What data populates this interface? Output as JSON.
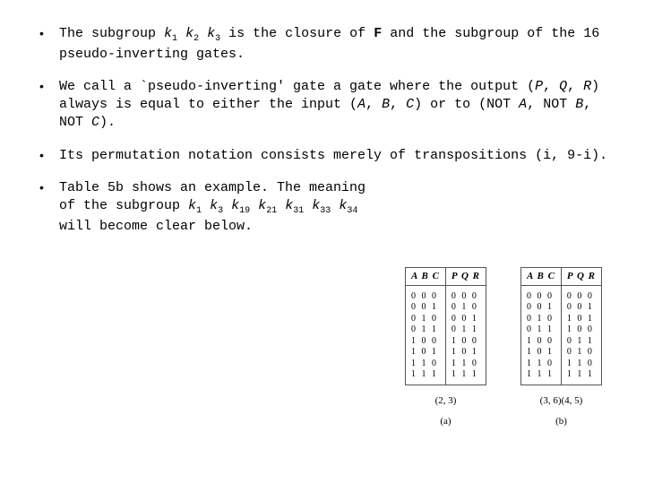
{
  "bullets": {
    "b1a": "The subgroup ",
    "b1k1": "k",
    "b1s1": "1",
    "b1k2": "k",
    "b1s2": "2",
    "b1k3": "k",
    "b1s3": "3",
    "b1b": " is the closure of ",
    "b1F": "F",
    "b1c": " and the subgroup of the 16 pseudo-inverting gates.",
    "b2a": "We call a `pseudo-inverting' gate a gate where the output (",
    "b2P": "P",
    "b2c1": ", ",
    "b2Q": "Q",
    "b2c2": ", ",
    "b2R": "R",
    "b2b": ") always is equal to either the input (",
    "b2A": "A",
    "b2c3": ", ",
    "b2B": "B",
    "b2c4": ", ",
    "b2C": "C",
    "b2c5": ") or to (NOT ",
    "b2A2": "A",
    "b2c6": ", NOT ",
    "b2B2": "B",
    "b2c7": ", NOT ",
    "b2C2": "C",
    "b2c8": ").",
    "b3": "Its permutation notation consists merely of transpositions (i, 9-i).",
    "b4a": "Table 5b shows an example. The meaning of the subgroup ",
    "b4k1": "k",
    "b4s1": "1",
    "b4k3": "k",
    "b4s3": "3",
    "b4k19": "k",
    "b4s19": "19",
    "b4k21": "k",
    "b4s21": "21",
    "b4k31": "k",
    "b4s31": "31",
    "b4k33": "k",
    "b4s33": "33",
    "b4k34": "k",
    "b4s34": "34",
    "b4b": " will become clear below."
  },
  "tables": {
    "hdrABC": "A B C",
    "hdrPQR": "P Q R",
    "a": {
      "left": "0 0 0\n0 0 1\n0 1 0\n0 1 1\n1 0 0\n1 0 1\n1 1 0\n1 1 1",
      "right": "0 0 0\n0 1 0\n0 0 1\n0 1 1\n1 0 0\n1 0 1\n1 1 0\n1 1 1",
      "caption": "(2, 3)",
      "label": "(a)"
    },
    "b": {
      "left": "0 0 0\n0 0 1\n0 1 0\n0 1 1\n1 0 0\n1 0 1\n1 1 0\n1 1 1",
      "right": "0 0 0\n0 0 1\n1 0 1\n1 0 0\n0 1 1\n0 1 0\n1 1 0\n1 1 1",
      "caption": "(3, 6)(4, 5)",
      "label": "(b)"
    }
  }
}
